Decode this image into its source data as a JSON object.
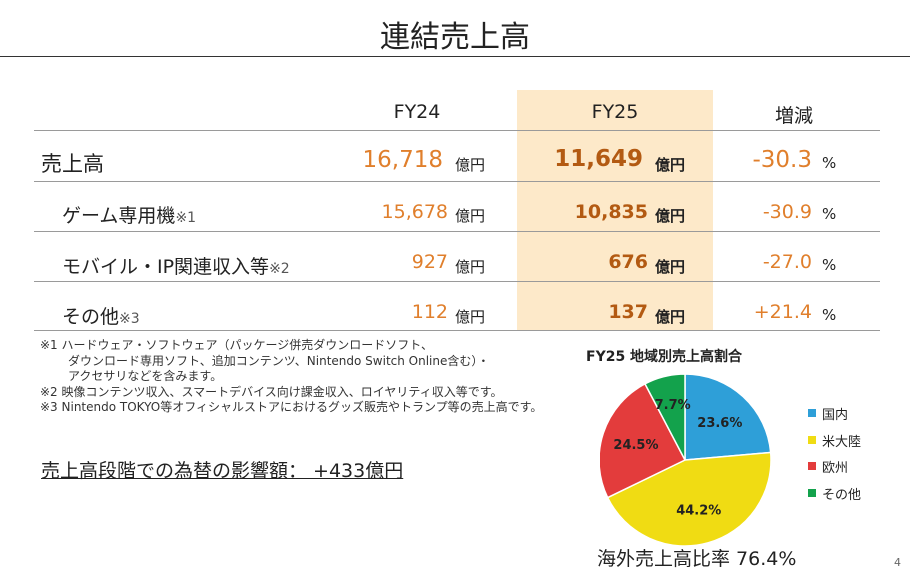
{
  "title": "連結売上高",
  "table": {
    "headers": {
      "fy24": "FY24",
      "fy25": "FY25",
      "change": "増減"
    },
    "rows": [
      {
        "label": "売上高",
        "note": "",
        "fy24": "16,718",
        "fy24_unit": "億円",
        "fy25": "11,649",
        "fy25_unit": "億円",
        "change": "-30.3",
        "change_unit": "%"
      },
      {
        "label": "ゲーム専用機",
        "note": "※1",
        "fy24": "15,678",
        "fy24_unit": "億円",
        "fy25": "10,835",
        "fy25_unit": "億円",
        "change": "-30.9",
        "change_unit": "%"
      },
      {
        "label": "モバイル・IP関連収入等",
        "note": "※2",
        "fy24": "927",
        "fy24_unit": "億円",
        "fy25": "676",
        "fy25_unit": "億円",
        "change": "-27.0",
        "change_unit": "%"
      },
      {
        "label": "その他",
        "note": "※3",
        "fy24": "112",
        "fy24_unit": "億円",
        "fy25": "137",
        "fy25_unit": "億円",
        "change": "+21.4",
        "change_unit": "%"
      }
    ]
  },
  "footnotes": [
    "※1 ハードウェア・ソフトウェア（パッケージ併売ダウンロードソフト、",
    "ダウンロード専用ソフト、追加コンテンツ、Nintendo Switch Online含む）・",
    "アクセサリなどを含みます。",
    "※2 映像コンテンツ収入、スマートデバイス向け課金収入、ロイヤリティ収入等です。",
    "※3 Nintendo TOKYO等オフィシャルストアにおけるグッズ販売やトランプ等の売上高です。"
  ],
  "fx_impact": "売上高段階での為替の影響額：  +433億円",
  "chart_data": {
    "type": "pie",
    "title": "FY25 地域別売上高割合",
    "slices": [
      {
        "name": "国内",
        "value": 23.6,
        "label": "23.6%",
        "color": "#2e9fd8"
      },
      {
        "name": "米大陸",
        "value": 44.2,
        "label": "44.2%",
        "color": "#f0dc13"
      },
      {
        "name": "欧州",
        "value": 24.5,
        "label": "24.5%",
        "color": "#e33c3c"
      },
      {
        "name": "その他",
        "value": 7.7,
        "label": "7.7%",
        "color": "#13a24c"
      }
    ],
    "legend_position": "right"
  },
  "overseas_ratio": "海外売上高比率 76.4%",
  "page_number": "4"
}
